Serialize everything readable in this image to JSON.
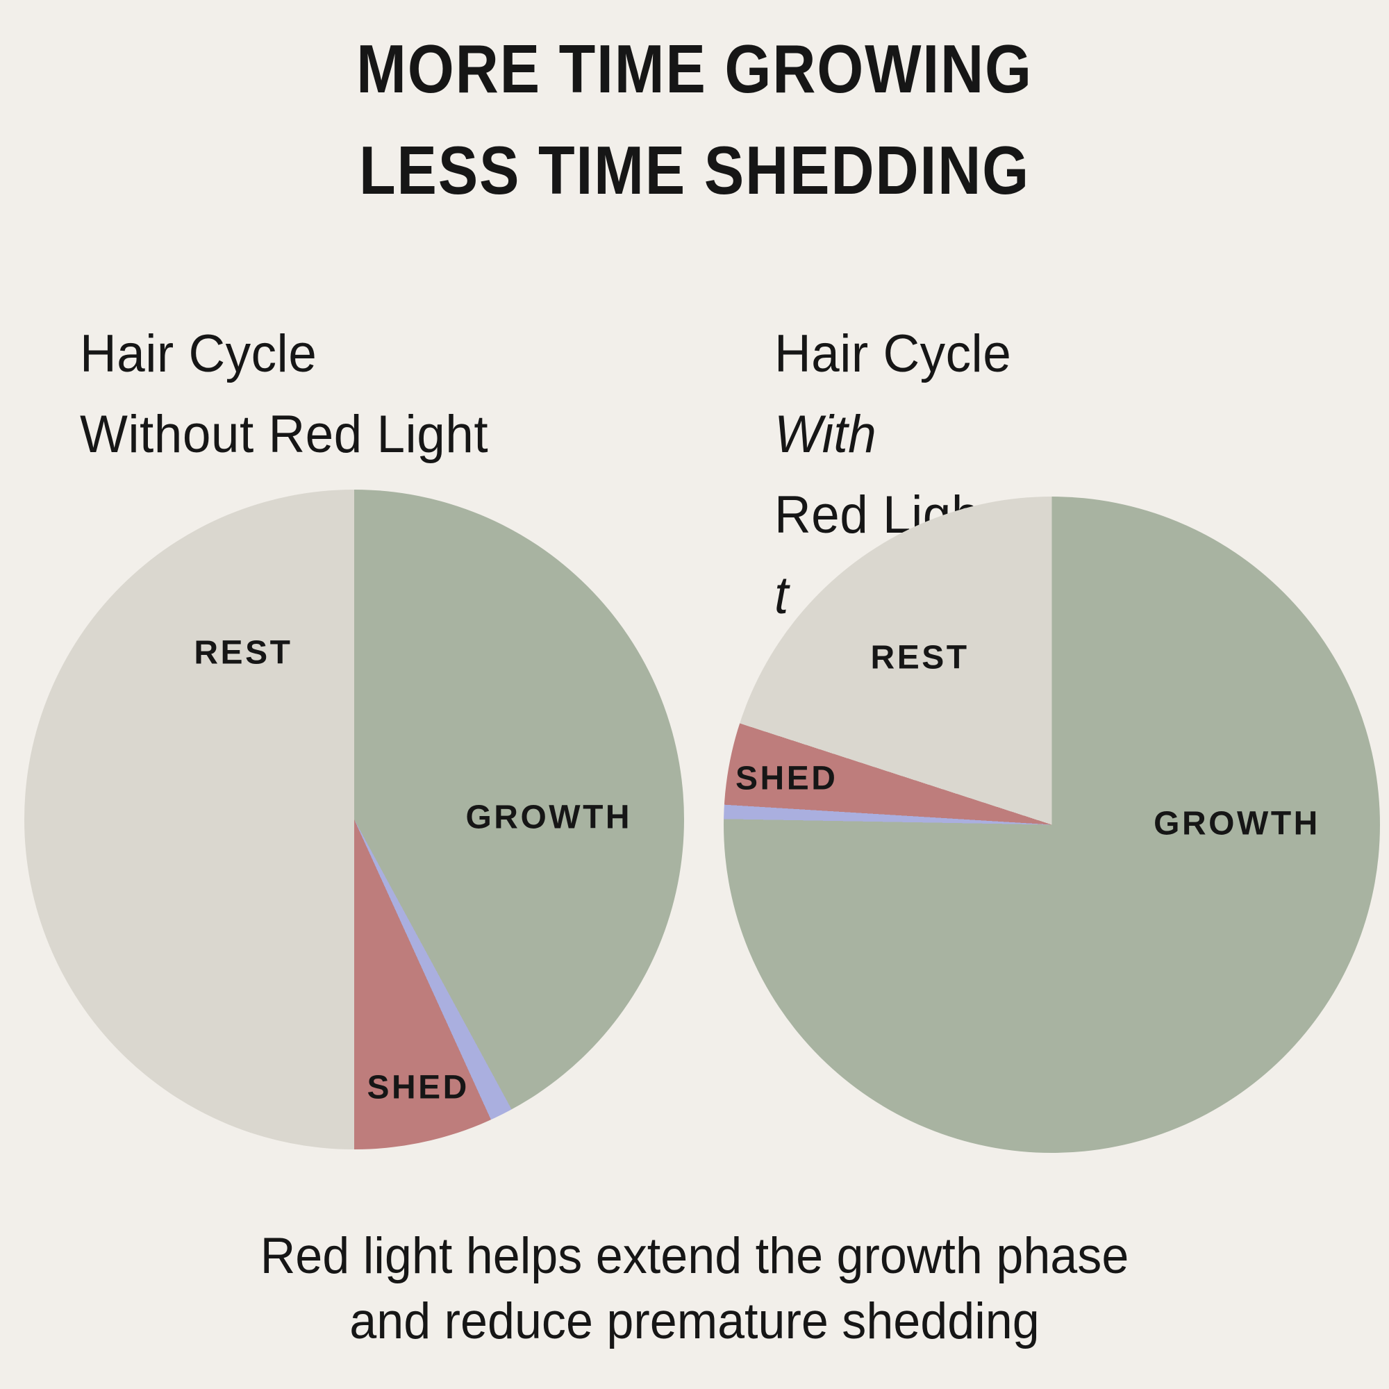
{
  "page": {
    "background_color": "#F2EFEA",
    "text_color": "#161616",
    "title_line1": "MORE TIME GROWING",
    "title_line2": "LESS TIME SHEDDING",
    "caption_line1": "Red light helps extend the growth phase",
    "caption_line2": "and reduce premature shedding"
  },
  "palette": {
    "growth_green": "#A8B3A1",
    "rest_gray": "#DAD7CF",
    "shed_red": "#BE7D7C",
    "transition_periwinkle": "#AAAFDF"
  },
  "chart_data": [
    {
      "type": "pie",
      "title": "Hair Cycle Without Red Light",
      "heading_line1": "Hair Cycle",
      "heading_line2_parts": [
        {
          "text": "Without Red Light",
          "italic": false
        }
      ],
      "units": "percent of hair cycle time (estimated from slice angles)",
      "slices": [
        {
          "label": "GROWTH",
          "value_percent": 42,
          "start_deg": 0,
          "end_deg": 151.5,
          "color": "#A8B3A1"
        },
        {
          "label": "",
          "value_percent": 1,
          "start_deg": 151.5,
          "end_deg": 155.5,
          "color": "#AAAFDF"
        },
        {
          "label": "SHED",
          "value_percent": 7,
          "start_deg": 155.5,
          "end_deg": 180,
          "color": "#BE7D7C"
        },
        {
          "label": "REST",
          "value_percent": 50,
          "start_deg": 180,
          "end_deg": 360,
          "color": "#DAD7CF"
        }
      ]
    },
    {
      "type": "pie",
      "title": "Hair Cycle With Red Light",
      "heading_line1": "Hair Cycle",
      "heading_line2_parts": [
        {
          "text": "With",
          "italic": true
        },
        {
          "text": " Red Ligh",
          "italic": false
        },
        {
          "text": "t",
          "italic": true
        }
      ],
      "units": "percent of hair cycle time (estimated from slice angles)",
      "slices": [
        {
          "label": "GROWTH",
          "value_percent": 75,
          "start_deg": 0,
          "end_deg": 271,
          "color": "#A8B3A1"
        },
        {
          "label": "",
          "value_percent": 1,
          "start_deg": 271,
          "end_deg": 273.5,
          "color": "#AAAFDF"
        },
        {
          "label": "SHED",
          "value_percent": 4,
          "start_deg": 273.5,
          "end_deg": 288,
          "color": "#BE7D7C"
        },
        {
          "label": "REST",
          "value_percent": 20,
          "start_deg": 288,
          "end_deg": 360,
          "color": "#DAD7CF"
        }
      ]
    }
  ]
}
